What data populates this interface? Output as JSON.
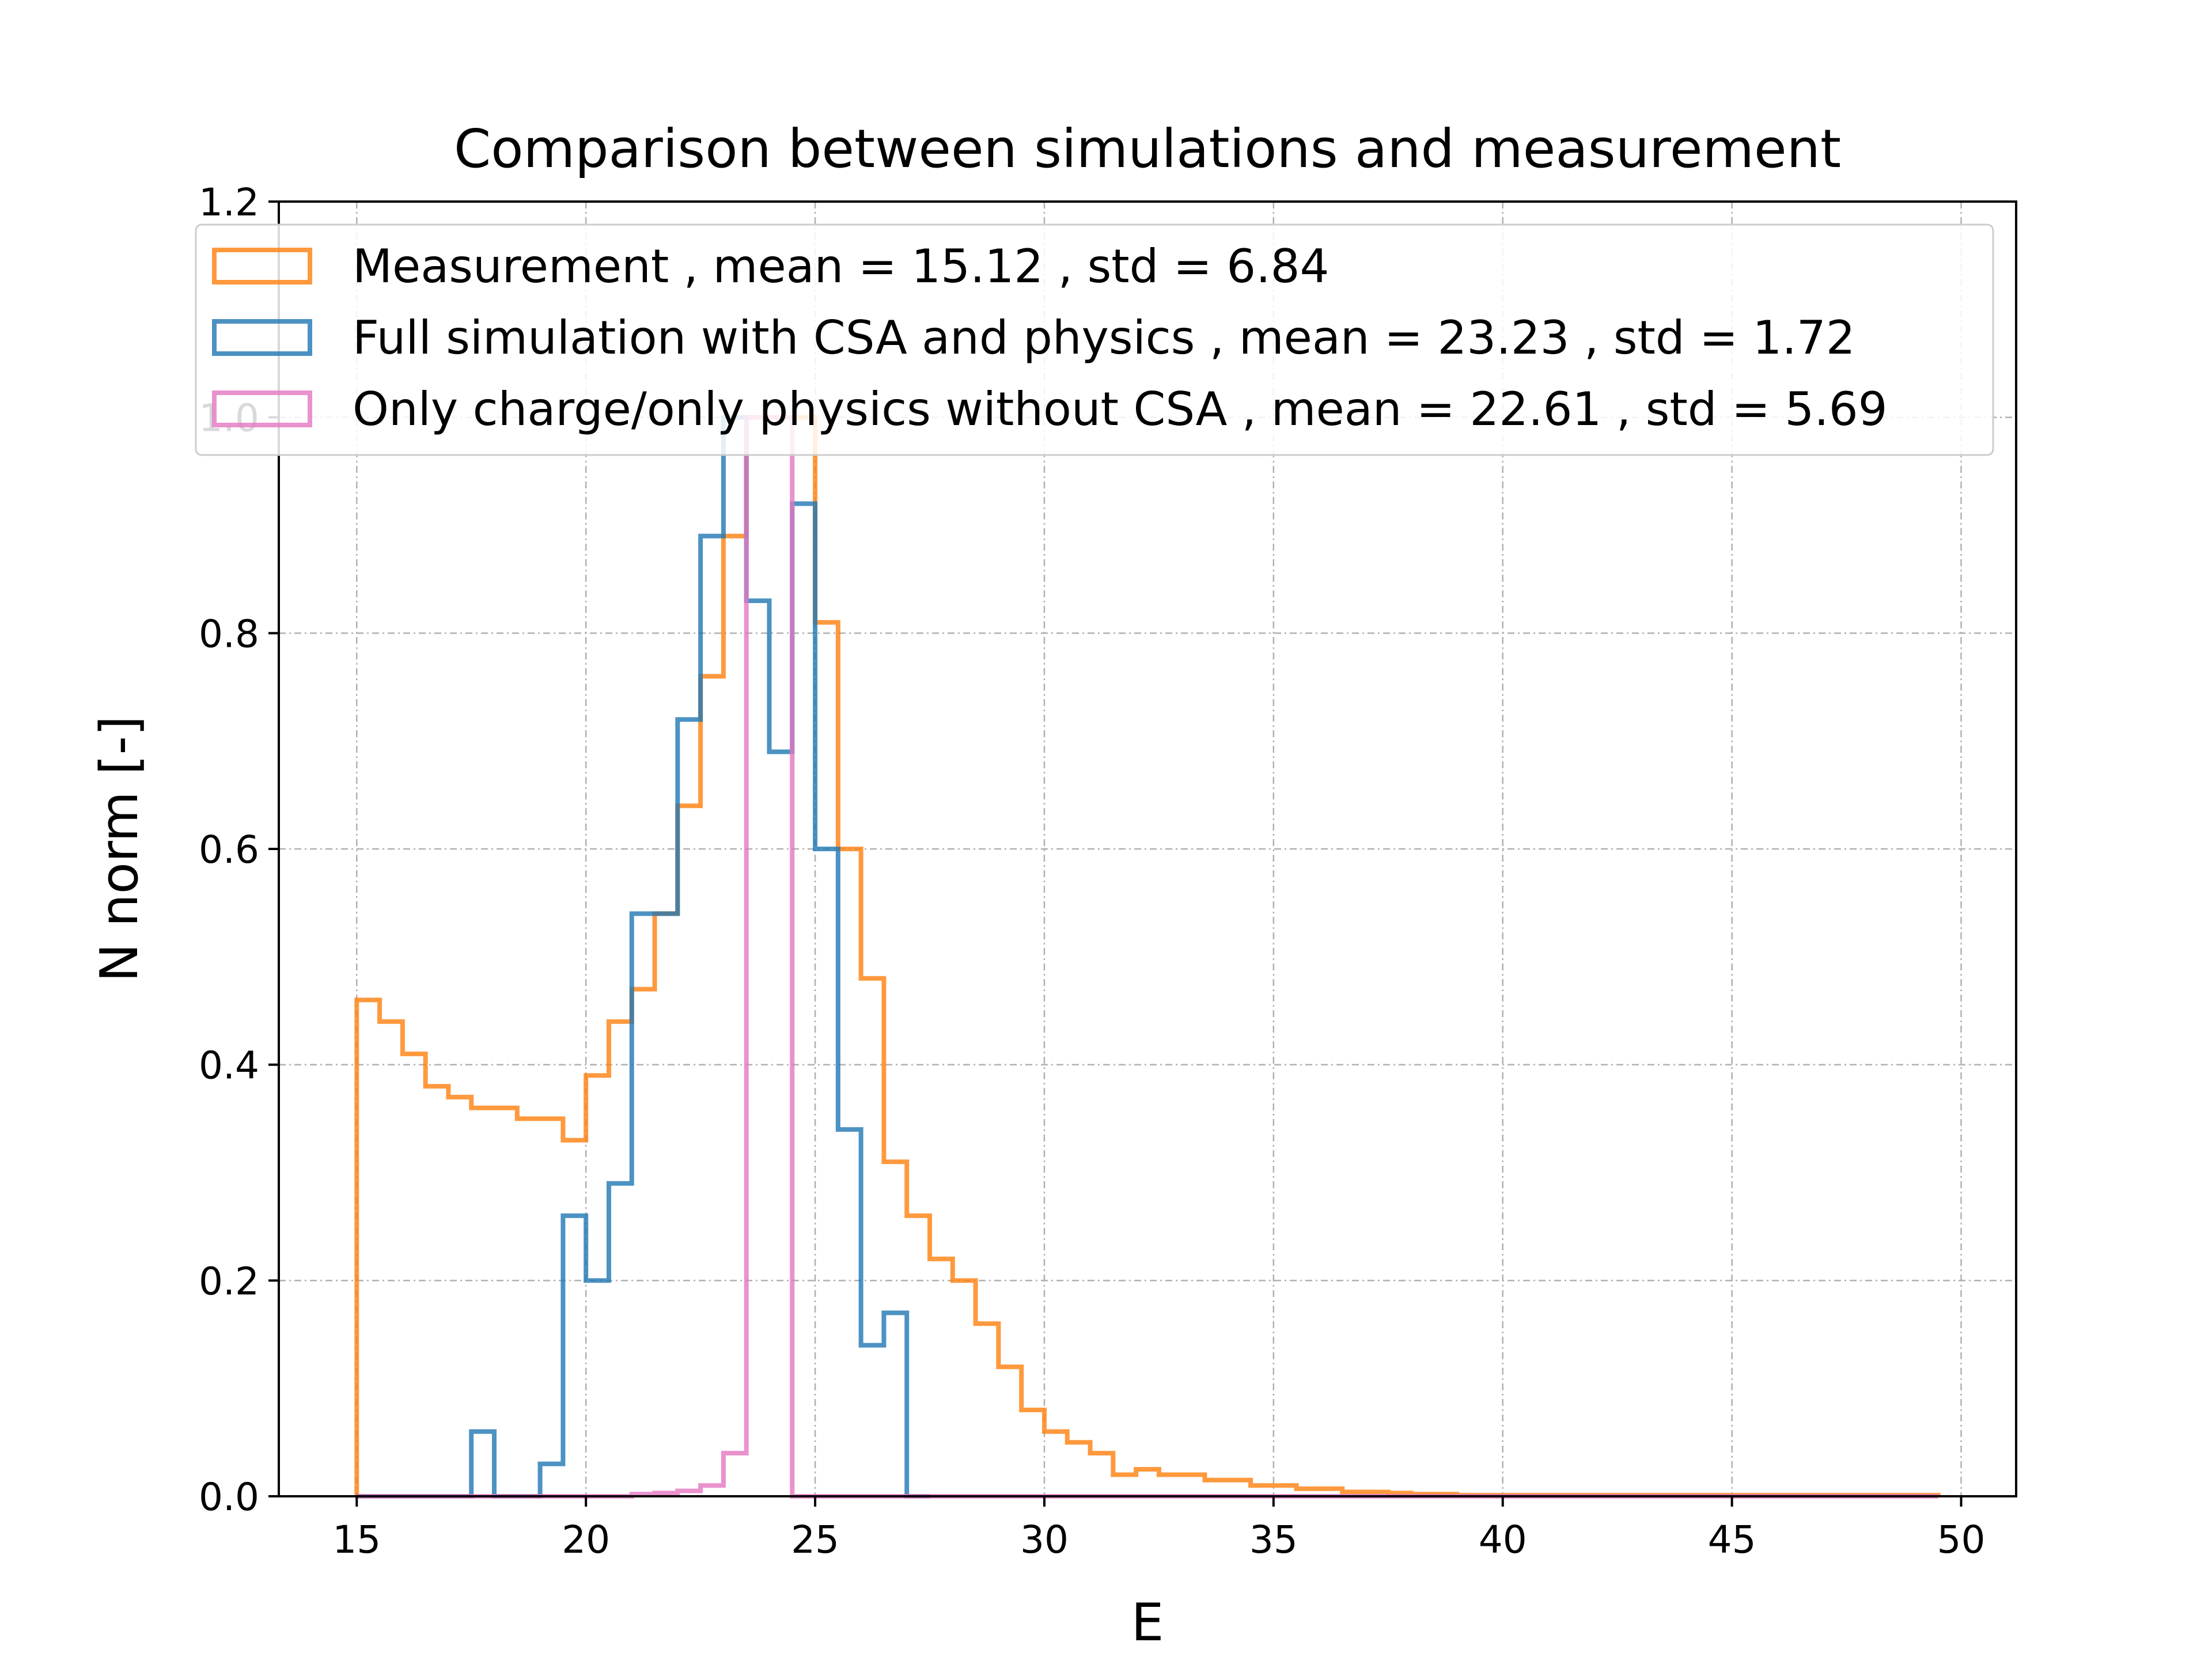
{
  "chart_data": {
    "type": "step-histogram",
    "title": "Comparison between simulations and measurement",
    "xlabel": "E",
    "ylabel": "N norm [-]",
    "xlim": [
      13.3,
      51.2
    ],
    "ylim": [
      0,
      1.2
    ],
    "xticks": [
      15,
      20,
      25,
      30,
      35,
      40,
      45,
      50
    ],
    "yticks": [
      0.0,
      0.2,
      0.4,
      0.6,
      0.8,
      1.0,
      1.2
    ],
    "xtick_labels": [
      "15",
      "20",
      "25",
      "30",
      "35",
      "40",
      "45",
      "50"
    ],
    "ytick_labels": [
      "0.0",
      "0.2",
      "0.4",
      "0.6",
      "0.8",
      "1.0",
      "1.2"
    ],
    "grid": true,
    "legend_position": "upper-center",
    "series": [
      {
        "name": "Measurement , mean = 15.12 , std = 6.84",
        "color": "#ff7f0e",
        "bin_start": 15.0,
        "bin_width": 0.5,
        "values": [
          0.46,
          0.44,
          0.41,
          0.38,
          0.37,
          0.36,
          0.36,
          0.35,
          0.35,
          0.33,
          0.39,
          0.44,
          0.47,
          0.54,
          0.64,
          0.76,
          0.89,
          1.0,
          1.0,
          1.0,
          0.81,
          0.6,
          0.48,
          0.31,
          0.26,
          0.22,
          0.2,
          0.16,
          0.12,
          0.08,
          0.06,
          0.05,
          0.04,
          0.02,
          0.025,
          0.02,
          0.02,
          0.015,
          0.015,
          0.01,
          0.01,
          0.007,
          0.007,
          0.004,
          0.004,
          0.003,
          0.002,
          0.002,
          0.001,
          0.001,
          0.001,
          0.001,
          0.001,
          0.001,
          0.001,
          0.001,
          0.001,
          0.001,
          0.001,
          0.001,
          0.001,
          0.001,
          0.001,
          0.001,
          0.001,
          0.001,
          0.001,
          0.001,
          0.001
        ]
      },
      {
        "name": "Full simulation with CSA and physics , mean = 23.23 , std = 1.72",
        "color": "#1f77b4",
        "bin_start": 15.0,
        "bin_width": 0.5,
        "values": [
          0,
          0,
          0,
          0,
          0,
          0.06,
          0,
          0,
          0.03,
          0.26,
          0.2,
          0.29,
          0.54,
          0.54,
          0.72,
          0.89,
          1.0,
          0.83,
          0.69,
          0.92,
          0.6,
          0.34,
          0.14,
          0.17,
          0
        ]
      },
      {
        "name": "Only charge/only physics without CSA , mean = 22.61 , std = 5.69",
        "color": "#e377c2",
        "bin_start": 15.0,
        "bin_width": 0.5,
        "values": [
          0,
          0,
          0,
          0,
          0,
          0,
          0,
          0,
          0,
          0,
          0,
          0,
          0.002,
          0.003,
          0.005,
          0.01,
          0.04,
          1.0,
          1.0,
          0,
          0,
          0,
          0,
          0,
          0,
          0,
          0,
          0,
          0,
          0,
          0,
          0,
          0,
          0,
          0,
          0,
          0,
          0,
          0,
          0,
          0,
          0,
          0,
          0,
          0,
          0,
          0,
          0,
          0,
          0,
          0,
          0,
          0,
          0,
          0,
          0,
          0,
          0,
          0,
          0,
          0,
          0,
          0,
          0,
          0,
          0,
          0,
          0,
          0
        ]
      }
    ]
  }
}
